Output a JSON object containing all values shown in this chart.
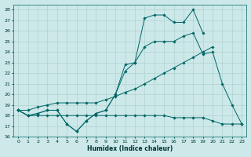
{
  "xlabel": "Humidex (Indice chaleur)",
  "background_color": "#cce8e8",
  "grid_color": "#aacccc",
  "line_color": "#006666",
  "xlim": [
    -0.5,
    23.5
  ],
  "ylim": [
    16,
    28.5
  ],
  "xticks": [
    0,
    1,
    2,
    3,
    4,
    5,
    6,
    7,
    8,
    9,
    10,
    11,
    12,
    13,
    14,
    15,
    16,
    17,
    18,
    19,
    20,
    21,
    22,
    23
  ],
  "yticks": [
    16,
    17,
    18,
    19,
    20,
    21,
    22,
    23,
    24,
    25,
    26,
    27,
    28
  ],
  "series": [
    {
      "x": [
        0,
        1,
        2,
        3,
        4,
        5,
        6,
        7,
        8,
        9,
        10,
        11,
        12,
        13,
        14,
        15,
        16,
        17,
        18,
        19
      ],
      "y": [
        18.5,
        18.0,
        18.2,
        18.5,
        18.5,
        17.2,
        16.5,
        17.5,
        18.2,
        18.5,
        20.0,
        22.8,
        23.0,
        27.2,
        27.5,
        27.5,
        26.8,
        26.8,
        28.0,
        25.8
      ]
    },
    {
      "x": [
        0,
        1,
        2,
        3,
        4,
        5,
        6,
        7,
        8,
        9,
        10,
        11,
        12,
        13,
        14,
        15,
        16,
        17,
        18,
        19,
        20,
        21,
        22,
        23
      ],
      "y": [
        18.5,
        18.0,
        18.2,
        18.5,
        18.5,
        17.2,
        16.5,
        17.5,
        18.2,
        18.5,
        20.0,
        22.2,
        23.0,
        24.5,
        25.0,
        25.0,
        25.0,
        25.5,
        25.8,
        23.8,
        24.0,
        21.0,
        19.0,
        17.2
      ]
    },
    {
      "x": [
        0,
        1,
        2,
        3,
        4,
        5,
        6,
        7,
        8,
        9,
        10,
        11,
        12,
        13,
        14,
        15,
        16,
        17,
        18,
        19,
        20
      ],
      "y": [
        18.5,
        18.5,
        18.8,
        19.0,
        19.2,
        19.2,
        19.2,
        19.2,
        19.2,
        19.5,
        19.8,
        20.2,
        20.5,
        21.0,
        21.5,
        22.0,
        22.5,
        23.0,
        23.5,
        24.0,
        24.5
      ]
    },
    {
      "x": [
        0,
        1,
        2,
        3,
        4,
        5,
        6,
        7,
        8,
        9,
        10,
        11,
        12,
        13,
        14,
        15,
        16,
        17,
        18,
        19,
        20,
        21,
        22,
        23
      ],
      "y": [
        18.5,
        18.0,
        18.0,
        18.0,
        18.0,
        18.0,
        18.0,
        18.0,
        18.0,
        18.0,
        18.0,
        18.0,
        18.0,
        18.0,
        18.0,
        18.0,
        17.8,
        17.8,
        17.8,
        17.8,
        17.5,
        17.2,
        17.2,
        17.2
      ]
    }
  ]
}
